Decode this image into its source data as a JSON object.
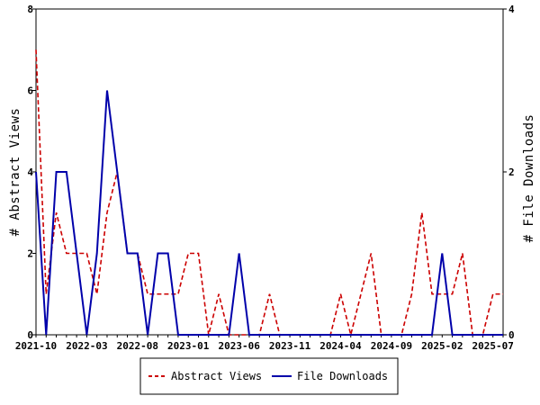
{
  "chart_data": {
    "type": "line",
    "x": [
      "2021-10",
      "2021-11",
      "2021-12",
      "2022-01",
      "2022-02",
      "2022-03",
      "2022-04",
      "2022-05",
      "2022-06",
      "2022-07",
      "2022-08",
      "2022-09",
      "2022-10",
      "2022-11",
      "2022-12",
      "2023-01",
      "2023-02",
      "2023-03",
      "2023-04",
      "2023-05",
      "2023-06",
      "2023-07",
      "2023-08",
      "2023-09",
      "2023-10",
      "2023-11",
      "2023-12",
      "2024-01",
      "2024-02",
      "2024-03",
      "2024-04",
      "2024-05",
      "2024-06",
      "2024-07",
      "2024-08",
      "2024-09",
      "2024-10",
      "2024-11",
      "2024-12",
      "2025-01",
      "2025-02",
      "2025-03",
      "2025-04",
      "2025-05",
      "2025-06",
      "2025-07",
      "2025-08"
    ],
    "x_ticks": [
      "2021-10",
      "2022-03",
      "2022-08",
      "2023-01",
      "2023-06",
      "2023-11",
      "2024-04",
      "2024-09",
      "2025-02",
      "2025-07"
    ],
    "series": [
      {
        "name": "Abstract Views",
        "axis": "left",
        "color": "#cc0000",
        "style": "dashed",
        "values": [
          7,
          1,
          3,
          2,
          2,
          2,
          1,
          3,
          4,
          2,
          2,
          1,
          1,
          1,
          1,
          2,
          2,
          0,
          1,
          0,
          0,
          0,
          0,
          1,
          0,
          0,
          0,
          0,
          0,
          0,
          1,
          0,
          1,
          2,
          0,
          0,
          0,
          1,
          3,
          1,
          1,
          1,
          2,
          0,
          0,
          1,
          1
        ]
      },
      {
        "name": "File Downloads",
        "axis": "right",
        "color": "#0000aa",
        "style": "solid",
        "values": [
          2,
          0,
          2,
          2,
          1,
          0,
          1,
          3,
          2,
          1,
          1,
          0,
          1,
          1,
          0,
          0,
          0,
          0,
          0,
          0,
          1,
          0,
          0,
          0,
          0,
          0,
          0,
          0,
          0,
          0,
          0,
          0,
          0,
          0,
          0,
          0,
          0,
          0,
          0,
          0,
          1,
          0,
          0,
          0,
          0,
          0,
          0
        ]
      }
    ],
    "ylabel": "# Abstract Views",
    "y2label": "# File Downloads",
    "ylim": [
      0,
      8
    ],
    "y_ticks": [
      "0",
      "2",
      "4",
      "6",
      "8"
    ],
    "y2lim": [
      0,
      4
    ],
    "y2_ticks": [
      "0",
      "2",
      "4"
    ],
    "grid": false,
    "legend_position": "bottom"
  }
}
